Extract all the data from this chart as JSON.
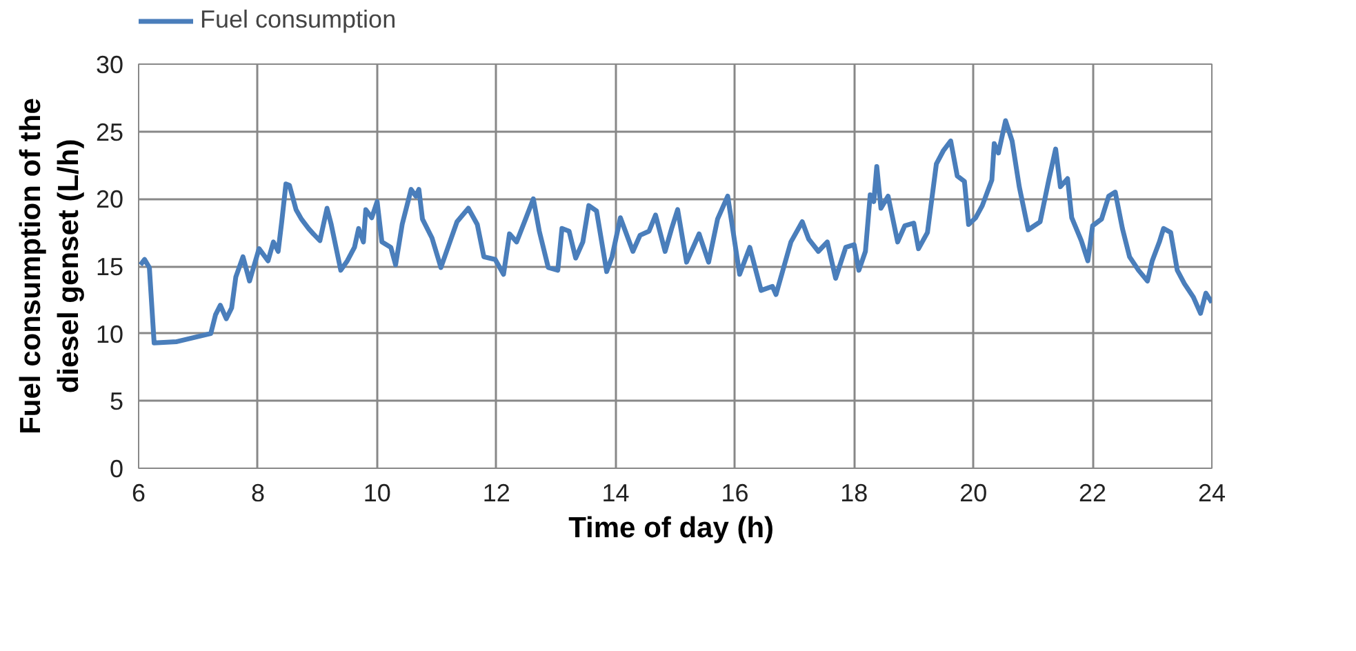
{
  "chart_data": {
    "type": "line",
    "xlabel": "Time of  day (h)",
    "ylabel": "Fuel consumption of the\ndiesel genset (L/h)",
    "xlim": [
      6,
      24
    ],
    "xticks": [
      6,
      8,
      10,
      12,
      14,
      16,
      18,
      20,
      22,
      24
    ],
    "ylim": [
      0,
      30
    ],
    "yticks": [
      0,
      5,
      10,
      15,
      20,
      25,
      30
    ],
    "grid": true,
    "legend": "top left",
    "marker": "none",
    "line_style": "solid",
    "series": [
      {
        "name": "Fuel consumption",
        "color": "#4a7ebb",
        "x": [
          6.03,
          6.1,
          6.18,
          6.26,
          6.64,
          7.21,
          7.29,
          7.37,
          7.47,
          7.56,
          7.63,
          7.75,
          7.86,
          8.02,
          8.17,
          8.26,
          8.34,
          8.4,
          8.47,
          8.53,
          8.64,
          8.73,
          8.85,
          8.93,
          9.04,
          9.16,
          9.23,
          9.39,
          9.5,
          9.62,
          9.69,
          9.77,
          9.81,
          9.91,
          10.0,
          10.08,
          10.23,
          10.31,
          10.42,
          10.57,
          10.65,
          10.7,
          10.76,
          10.92,
          11.07,
          11.22,
          11.34,
          11.53,
          11.68,
          11.79,
          11.98,
          12.12,
          12.22,
          12.34,
          12.49,
          12.62,
          12.72,
          12.87,
          13.03,
          13.1,
          13.22,
          13.33,
          13.45,
          13.55,
          13.68,
          13.85,
          13.94,
          14.08,
          14.29,
          14.41,
          14.56,
          14.67,
          14.83,
          14.94,
          15.04,
          15.19,
          15.4,
          15.56,
          15.71,
          15.88,
          16.08,
          16.25,
          16.44,
          16.63,
          16.69,
          16.94,
          17.13,
          17.24,
          17.4,
          17.55,
          17.69,
          17.86,
          18.0,
          18.08,
          18.19,
          18.27,
          18.33,
          18.38,
          18.45,
          18.57,
          18.73,
          18.85,
          19.0,
          19.08,
          19.23,
          19.38,
          19.5,
          19.62,
          19.73,
          19.85,
          19.92,
          20.04,
          20.15,
          20.31,
          20.35,
          20.42,
          20.54,
          20.65,
          20.77,
          20.92,
          21.12,
          21.27,
          21.38,
          21.46,
          21.58,
          21.65,
          21.81,
          21.92,
          22.0,
          22.15,
          22.27,
          22.38,
          22.5,
          22.62,
          22.77,
          22.92,
          23.0,
          23.12,
          23.19,
          23.31,
          23.42,
          23.54,
          23.69,
          23.81,
          23.9,
          24.0
        ],
        "values": [
          15.1,
          15.5,
          14.9,
          9.3,
          9.4,
          10.0,
          11.4,
          12.1,
          11.1,
          11.9,
          14.2,
          15.7,
          13.9,
          16.3,
          15.4,
          16.8,
          16.1,
          18.3,
          21.1,
          21.0,
          19.2,
          18.5,
          17.8,
          17.4,
          16.9,
          19.3,
          18.1,
          14.7,
          15.4,
          16.4,
          17.8,
          16.8,
          19.2,
          18.6,
          19.8,
          16.8,
          16.4,
          15.1,
          18.1,
          20.7,
          20.2,
          20.7,
          18.5,
          17.1,
          14.9,
          16.8,
          18.3,
          19.3,
          18.1,
          15.7,
          15.5,
          14.4,
          17.4,
          16.8,
          18.5,
          20.0,
          17.6,
          14.9,
          14.7,
          17.8,
          17.6,
          15.6,
          16.8,
          19.5,
          19.1,
          14.6,
          15.7,
          18.6,
          16.1,
          17.3,
          17.6,
          18.8,
          16.1,
          17.8,
          19.2,
          15.3,
          17.4,
          15.3,
          18.5,
          20.2,
          14.4,
          16.4,
          13.2,
          13.5,
          12.9,
          16.8,
          18.3,
          17.0,
          16.1,
          16.8,
          14.1,
          16.4,
          16.6,
          14.7,
          16.1,
          20.3,
          19.8,
          22.4,
          19.3,
          20.2,
          16.8,
          18.0,
          18.2,
          16.3,
          17.5,
          22.6,
          23.6,
          24.3,
          21.7,
          21.3,
          18.1,
          18.6,
          19.5,
          21.4,
          24.1,
          23.4,
          25.8,
          24.3,
          20.9,
          17.7,
          18.3,
          21.5,
          23.7,
          20.9,
          21.5,
          18.6,
          16.9,
          15.4,
          18.0,
          18.5,
          20.2,
          20.5,
          17.8,
          15.7,
          14.7,
          13.9,
          15.4,
          16.8,
          17.8,
          17.5,
          14.7,
          13.7,
          12.7,
          11.5,
          13.0,
          12.3
        ]
      }
    ]
  }
}
